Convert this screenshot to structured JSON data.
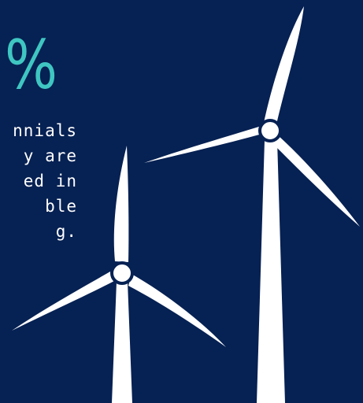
{
  "colors": {
    "background": "#062153",
    "accent": "#3fc6c2",
    "text": "#ffffff",
    "turbine": "#ffffff"
  },
  "stat": {
    "percent_sign": "%",
    "lines": [
      "nnials",
      "y are",
      "ed in",
      "ble",
      "g."
    ]
  },
  "icons": {
    "turbine_large": "wind-turbine-icon",
    "turbine_small": "wind-turbine-icon"
  }
}
